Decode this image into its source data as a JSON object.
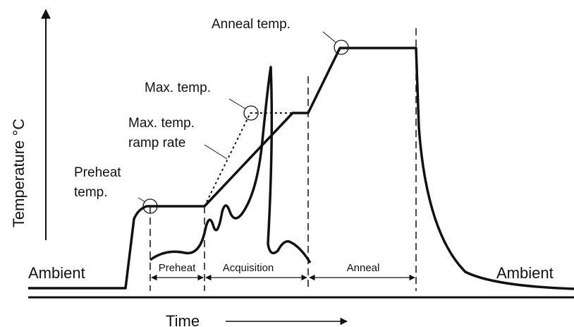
{
  "axes": {
    "y_label": "Temperature °C",
    "x_label": "Time"
  },
  "annotations": {
    "ambient_left": "Ambient",
    "ambient_right": "Ambient",
    "preheat_temp": [
      "Preheat",
      "temp."
    ],
    "ramp_rate": [
      "Max. temp.",
      "ramp rate"
    ],
    "max_temp": "Max. temp.",
    "anneal_temp": "Anneal temp."
  },
  "phases": [
    "Preheat",
    "Acquisition",
    "Anneal"
  ]
}
